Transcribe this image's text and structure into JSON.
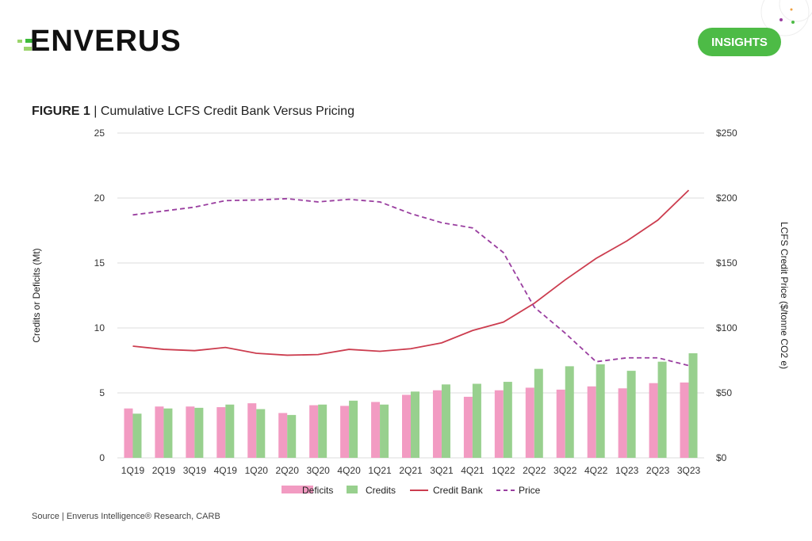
{
  "header": {
    "logo_text": "ENVERUS",
    "badge": "INSIGHTS"
  },
  "title": {
    "figure": "FIGURE 1",
    "separator": " | ",
    "text": "Cumulative LCFS Credit Bank Versus Pricing"
  },
  "source": "Source | Enverus Intelligence® Research, CARB",
  "chart_data": {
    "type": "bar",
    "title": "Cumulative LCFS Credit Bank Versus Pricing",
    "categories": [
      "1Q19",
      "2Q19",
      "3Q19",
      "4Q19",
      "1Q20",
      "2Q20",
      "3Q20",
      "4Q20",
      "1Q21",
      "2Q21",
      "3Q21",
      "4Q21",
      "1Q22",
      "2Q22",
      "3Q22",
      "4Q22",
      "1Q23",
      "2Q23",
      "3Q23"
    ],
    "ylabel": "Credits or Deficits (Mt)",
    "ylabel_right": "LCFS Credit Price ($/tonne CO2 e)",
    "ylim": [
      0,
      25
    ],
    "ylim_right": [
      0,
      250
    ],
    "yticks": [
      "0",
      "5",
      "10",
      "15",
      "20",
      "25"
    ],
    "yticks_right": [
      "$0",
      "$50",
      "$100",
      "$150",
      "$200",
      "$250"
    ],
    "grid": true,
    "legend_position": "bottom",
    "series": [
      {
        "name": "Deficits",
        "type": "bar",
        "axis": "left",
        "color": "#f29bc2",
        "values": [
          3.8,
          3.95,
          3.95,
          3.9,
          4.2,
          3.45,
          4.05,
          4.0,
          4.3,
          4.85,
          5.2,
          4.7,
          5.2,
          5.4,
          5.25,
          5.5,
          5.35,
          5.75,
          5.8
        ]
      },
      {
        "name": "Credits",
        "type": "bar",
        "axis": "left",
        "color": "#98d08e",
        "values": [
          3.4,
          3.8,
          3.85,
          4.1,
          3.75,
          3.3,
          4.1,
          4.4,
          4.1,
          5.1,
          5.65,
          5.7,
          5.85,
          6.85,
          7.05,
          7.2,
          6.7,
          7.4,
          8.05
        ]
      },
      {
        "name": "Credit Bank",
        "type": "line",
        "axis": "left",
        "color": "#cc3d4f",
        "values": [
          8.6,
          8.35,
          8.25,
          8.5,
          8.05,
          7.9,
          7.95,
          8.35,
          8.2,
          8.4,
          8.85,
          9.8,
          10.45,
          11.9,
          13.7,
          15.35,
          16.7,
          18.3,
          20.6
        ]
      },
      {
        "name": "Price",
        "type": "line",
        "dashed": true,
        "axis": "right",
        "color": "#9a3fa0",
        "values": [
          187,
          190,
          193,
          198,
          198.5,
          199.5,
          197,
          199,
          197,
          188,
          181,
          177,
          158,
          116,
          96,
          74,
          77,
          77,
          71
        ]
      }
    ]
  }
}
